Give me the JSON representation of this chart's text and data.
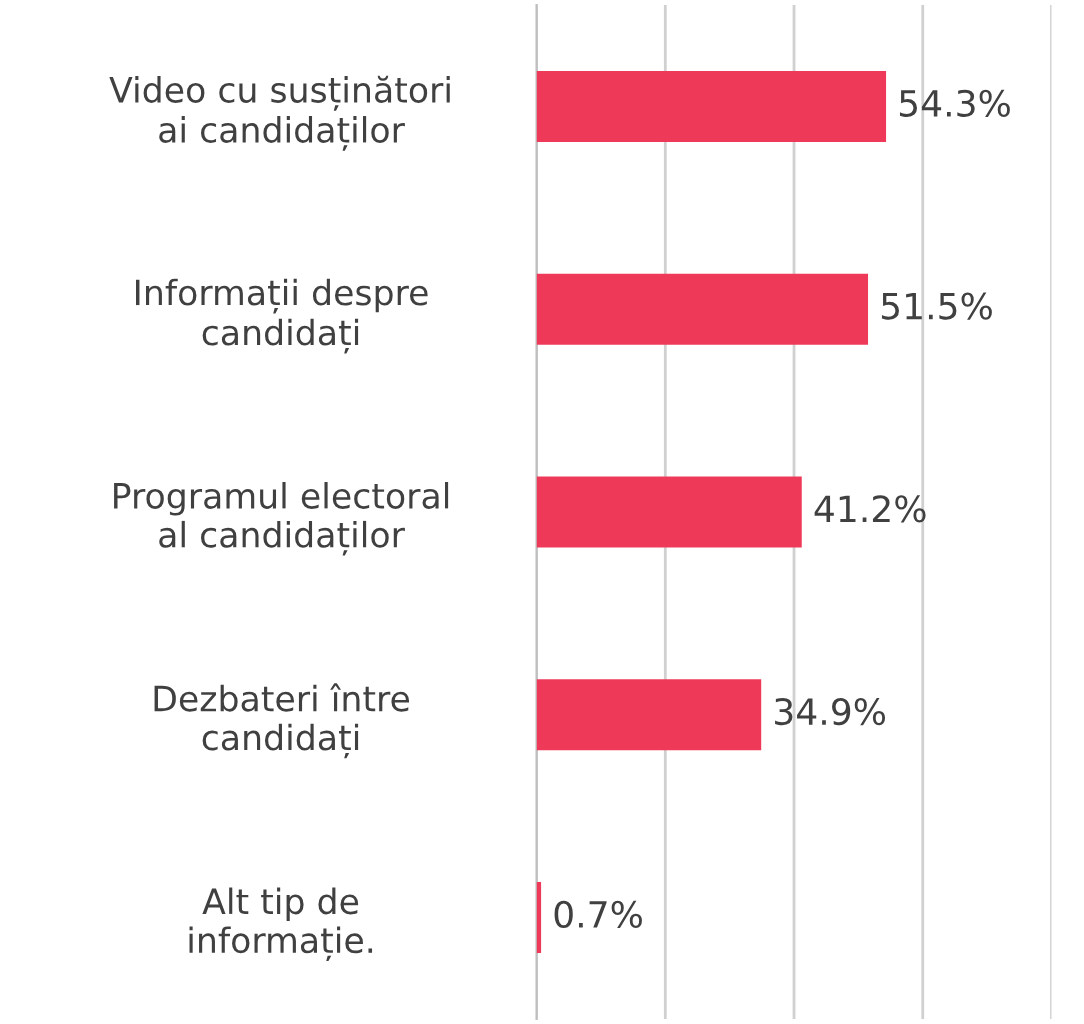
{
  "chart_data": {
    "type": "bar",
    "orientation": "horizontal",
    "categories": [
      "Video cu susținători\nai candidaților",
      "Informații despre\ncandidați",
      "Programul electoral\nal candidaților",
      "Dezbateri între\ncandidați",
      "Alt tip de\ninformație."
    ],
    "values": [
      54.3,
      51.5,
      41.2,
      34.9,
      0.7
    ],
    "value_labels": [
      "54.3%",
      "51.5%",
      "41.2%",
      "34.9%",
      "0.7%"
    ],
    "color": "#ee3a58",
    "xlim": [
      0,
      80
    ],
    "xticks": [
      {
        "value": 0,
        "label": null
      },
      {
        "value": 20,
        "label": null
      },
      {
        "value": 40,
        "label": null
      },
      {
        "value": 60,
        "label": null
      },
      {
        "value": 80,
        "label": null
      }
    ],
    "grid": "x"
  }
}
